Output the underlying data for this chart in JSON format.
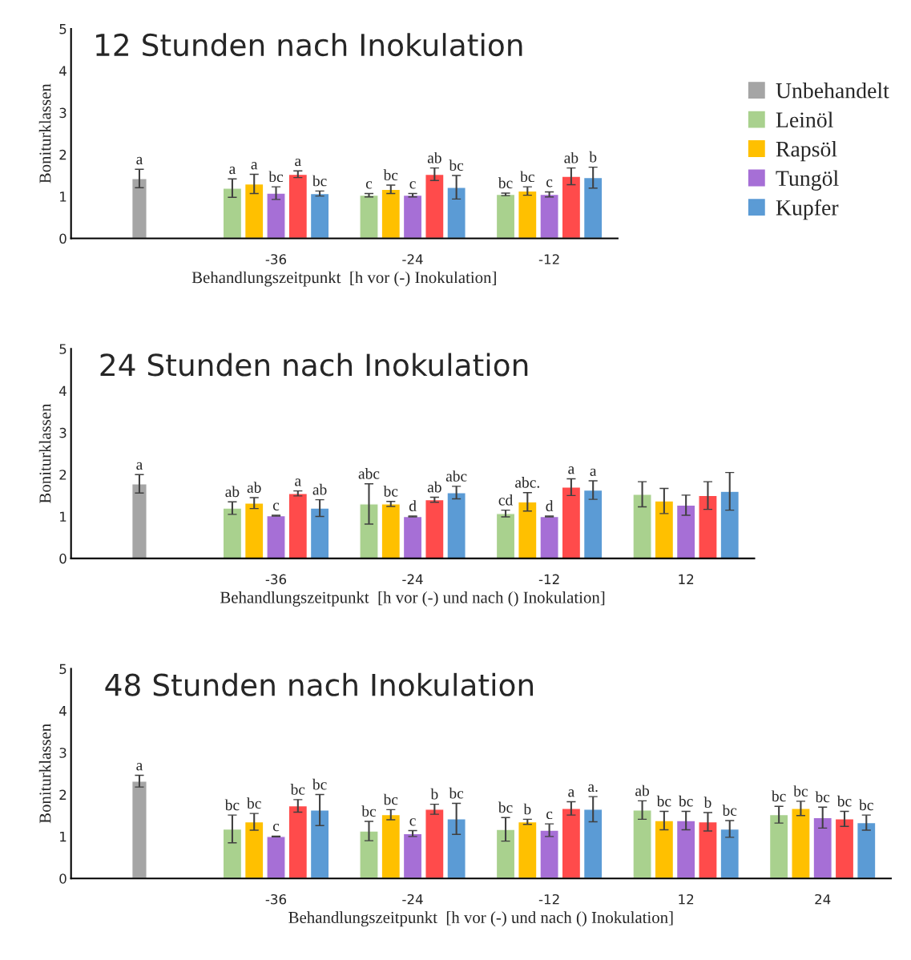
{
  "chart_data": [
    {
      "type": "bar",
      "title": "12 Stunden nach Inokulation",
      "xlabel": "Behandlungszeitpunkt  [h vor (-) Inokulation]",
      "ylabel": "Boniturklassen",
      "categories": [
        null,
        "-36",
        "-24",
        "-12"
      ],
      "ylim": [
        0,
        5
      ],
      "yticks": [
        0,
        1,
        2,
        3,
        4,
        5
      ],
      "legend": "right",
      "grid": false,
      "series": [
        {
          "name": "Unbehandelt",
          "color": "#a5a5a5",
          "values": [
            1.43,
            null,
            null,
            null
          ],
          "errors": [
            0.22,
            null,
            null,
            null
          ],
          "value_labels": [
            "a",
            null,
            null,
            null
          ]
        },
        {
          "name": "Leinöl",
          "color": "#a9d18e",
          "values": [
            null,
            1.2,
            1.03,
            1.05
          ],
          "errors": [
            null,
            0.22,
            0.04,
            0.03
          ],
          "value_labels": [
            null,
            "a",
            "c",
            "bc"
          ]
        },
        {
          "name": "Rapsöl",
          "color": "#ffc000",
          "values": [
            null,
            1.3,
            1.17,
            1.13
          ],
          "errors": [
            null,
            0.23,
            0.1,
            0.1
          ],
          "value_labels": [
            null,
            "a",
            "bc",
            "bc"
          ]
        },
        {
          "name": "Tungöl",
          "color": "#a66fd6",
          "values": [
            null,
            1.08,
            1.03,
            1.05
          ],
          "errors": [
            null,
            0.15,
            0.04,
            0.06
          ],
          "value_labels": [
            null,
            "bc",
            "c",
            "c"
          ]
        },
        {
          "color": "#ff4b4b",
          "values": [
            null,
            1.53,
            1.53,
            1.48
          ],
          "errors": [
            null,
            0.08,
            0.15,
            0.2
          ],
          "value_labels": [
            null,
            "a",
            "ab",
            "ab"
          ]
        },
        {
          "name": "Kupfer",
          "color": "#5b9bd5",
          "values": [
            null,
            1.07,
            1.22,
            1.45
          ],
          "errors": [
            null,
            0.06,
            0.28,
            0.25
          ],
          "value_labels": [
            null,
            "bc",
            "bc",
            "b"
          ]
        }
      ]
    },
    {
      "type": "bar",
      "title": "24 Stunden nach Inokulation",
      "xlabel": "Behandlungszeitpunkt  [h vor (-) und nach () Inokulation]",
      "ylabel": "Boniturklassen",
      "categories": [
        null,
        "-36",
        "-24",
        "-12",
        "12"
      ],
      "ylim": [
        0,
        5
      ],
      "yticks": [
        0,
        1,
        2,
        3,
        4,
        5
      ],
      "legend": false,
      "grid": false,
      "series": [
        {
          "color": "#a5a5a5",
          "values": [
            1.78,
            null,
            null,
            null,
            null
          ],
          "errors": [
            0.22,
            null,
            null,
            null,
            null
          ],
          "value_labels": [
            "a",
            null,
            null,
            null,
            null
          ]
        },
        {
          "color": "#a9d18e",
          "values": [
            null,
            1.2,
            1.3,
            1.07,
            1.53
          ],
          "errors": [
            null,
            0.15,
            0.48,
            0.08,
            0.3
          ],
          "value_labels": [
            null,
            "ab",
            "abc",
            "cd",
            null
          ]
        },
        {
          "color": "#ffc000",
          "values": [
            null,
            1.32,
            1.3,
            1.35,
            1.37
          ],
          "errors": [
            null,
            0.13,
            0.06,
            0.22,
            0.3
          ],
          "value_labels": [
            null,
            "ab",
            "bc",
            "abc.",
            null
          ]
        },
        {
          "color": "#a66fd6",
          "values": [
            null,
            1.02,
            1.0,
            1.0,
            1.27
          ],
          "errors": [
            null,
            0.01,
            0.01,
            0.01,
            0.24
          ],
          "value_labels": [
            null,
            "c",
            "d",
            "d",
            null
          ]
        },
        {
          "color": "#ff4b4b",
          "values": [
            null,
            1.55,
            1.4,
            1.7,
            1.5
          ],
          "errors": [
            null,
            0.06,
            0.06,
            0.2,
            0.33
          ],
          "value_labels": [
            null,
            "a",
            "ab",
            "a",
            null
          ]
        },
        {
          "color": "#5b9bd5",
          "values": [
            null,
            1.2,
            1.57,
            1.63,
            1.6
          ],
          "errors": [
            null,
            0.2,
            0.15,
            0.22,
            0.45
          ],
          "value_labels": [
            null,
            "ab",
            "abc",
            "a",
            null
          ]
        }
      ]
    },
    {
      "type": "bar",
      "title": "48 Stunden nach Inokulation",
      "xlabel": "Behandlungszeitpunkt  [h vor (-) und nach () Inokulation]",
      "ylabel": "Boniturklassen",
      "categories": [
        null,
        "-36",
        "-24",
        "-12",
        "12",
        "24"
      ],
      "ylim": [
        0,
        5
      ],
      "yticks": [
        0,
        1,
        2,
        3,
        4,
        5
      ],
      "legend": false,
      "grid": false,
      "series": [
        {
          "color": "#a5a5a5",
          "values": [
            2.32,
            null,
            null,
            null,
            null,
            null
          ],
          "errors": [
            0.14,
            null,
            null,
            null,
            null,
            null
          ],
          "value_labels": [
            "a",
            null,
            null,
            null,
            null,
            null
          ]
        },
        {
          "color": "#a9d18e",
          "values": [
            null,
            1.18,
            1.13,
            1.17,
            1.63,
            1.52
          ],
          "errors": [
            null,
            0.33,
            0.23,
            0.28,
            0.22,
            0.2
          ],
          "value_labels": [
            null,
            "bc",
            "bc",
            "bc",
            "ab",
            "bc"
          ]
        },
        {
          "color": "#ffc000",
          "values": [
            null,
            1.35,
            1.52,
            1.35,
            1.38,
            1.67
          ],
          "errors": [
            null,
            0.2,
            0.12,
            0.06,
            0.22,
            0.17
          ],
          "value_labels": [
            null,
            "bc",
            "bc",
            "b",
            "bc",
            "bc"
          ]
        },
        {
          "color": "#a66fd6",
          "values": [
            null,
            1.0,
            1.07,
            1.15,
            1.38,
            1.45
          ],
          "errors": [
            null,
            0.01,
            0.07,
            0.15,
            0.22,
            0.25
          ],
          "value_labels": [
            null,
            "c",
            "c",
            "c",
            "bc",
            "bc"
          ]
        },
        {
          "color": "#ff4b4b",
          "values": [
            null,
            1.73,
            1.65,
            1.67,
            1.35,
            1.42
          ],
          "errors": [
            null,
            0.15,
            0.12,
            0.16,
            0.22,
            0.18
          ],
          "value_labels": [
            null,
            "bc",
            "b",
            "a",
            "b",
            "bc"
          ]
        },
        {
          "color": "#5b9bd5",
          "values": [
            null,
            1.63,
            1.42,
            1.65,
            1.18,
            1.33
          ],
          "errors": [
            null,
            0.37,
            0.37,
            0.3,
            0.2,
            0.18
          ],
          "value_labels": [
            null,
            "bc",
            "bc",
            "a.",
            "bc",
            "bc"
          ]
        }
      ]
    }
  ]
}
